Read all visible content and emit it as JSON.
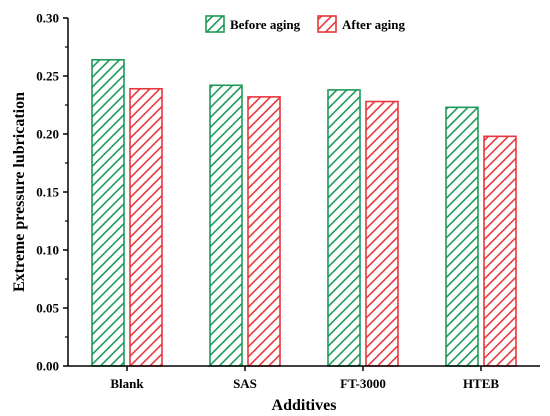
{
  "chart_data": {
    "type": "bar",
    "title": "",
    "xlabel": "Additives",
    "ylabel": "Extreme pressure lubrication",
    "categories": [
      "Blank",
      "SAS",
      "FT-3000",
      "HTEB"
    ],
    "series": [
      {
        "name": "Before aging",
        "values": [
          0.264,
          0.242,
          0.238,
          0.223
        ],
        "color": "#1e9a5a",
        "pattern": "diagonal-hatch"
      },
      {
        "name": "After aging",
        "values": [
          0.239,
          0.232,
          0.228,
          0.198
        ],
        "color": "#e8383d",
        "pattern": "diagonal-hatch"
      }
    ],
    "ylim": [
      0,
      0.3
    ],
    "yticks": [
      "0.00",
      "0.05",
      "0.10",
      "0.15",
      "0.20",
      "0.25",
      "0.30"
    ],
    "grid": false,
    "legend_position": "top-center"
  }
}
